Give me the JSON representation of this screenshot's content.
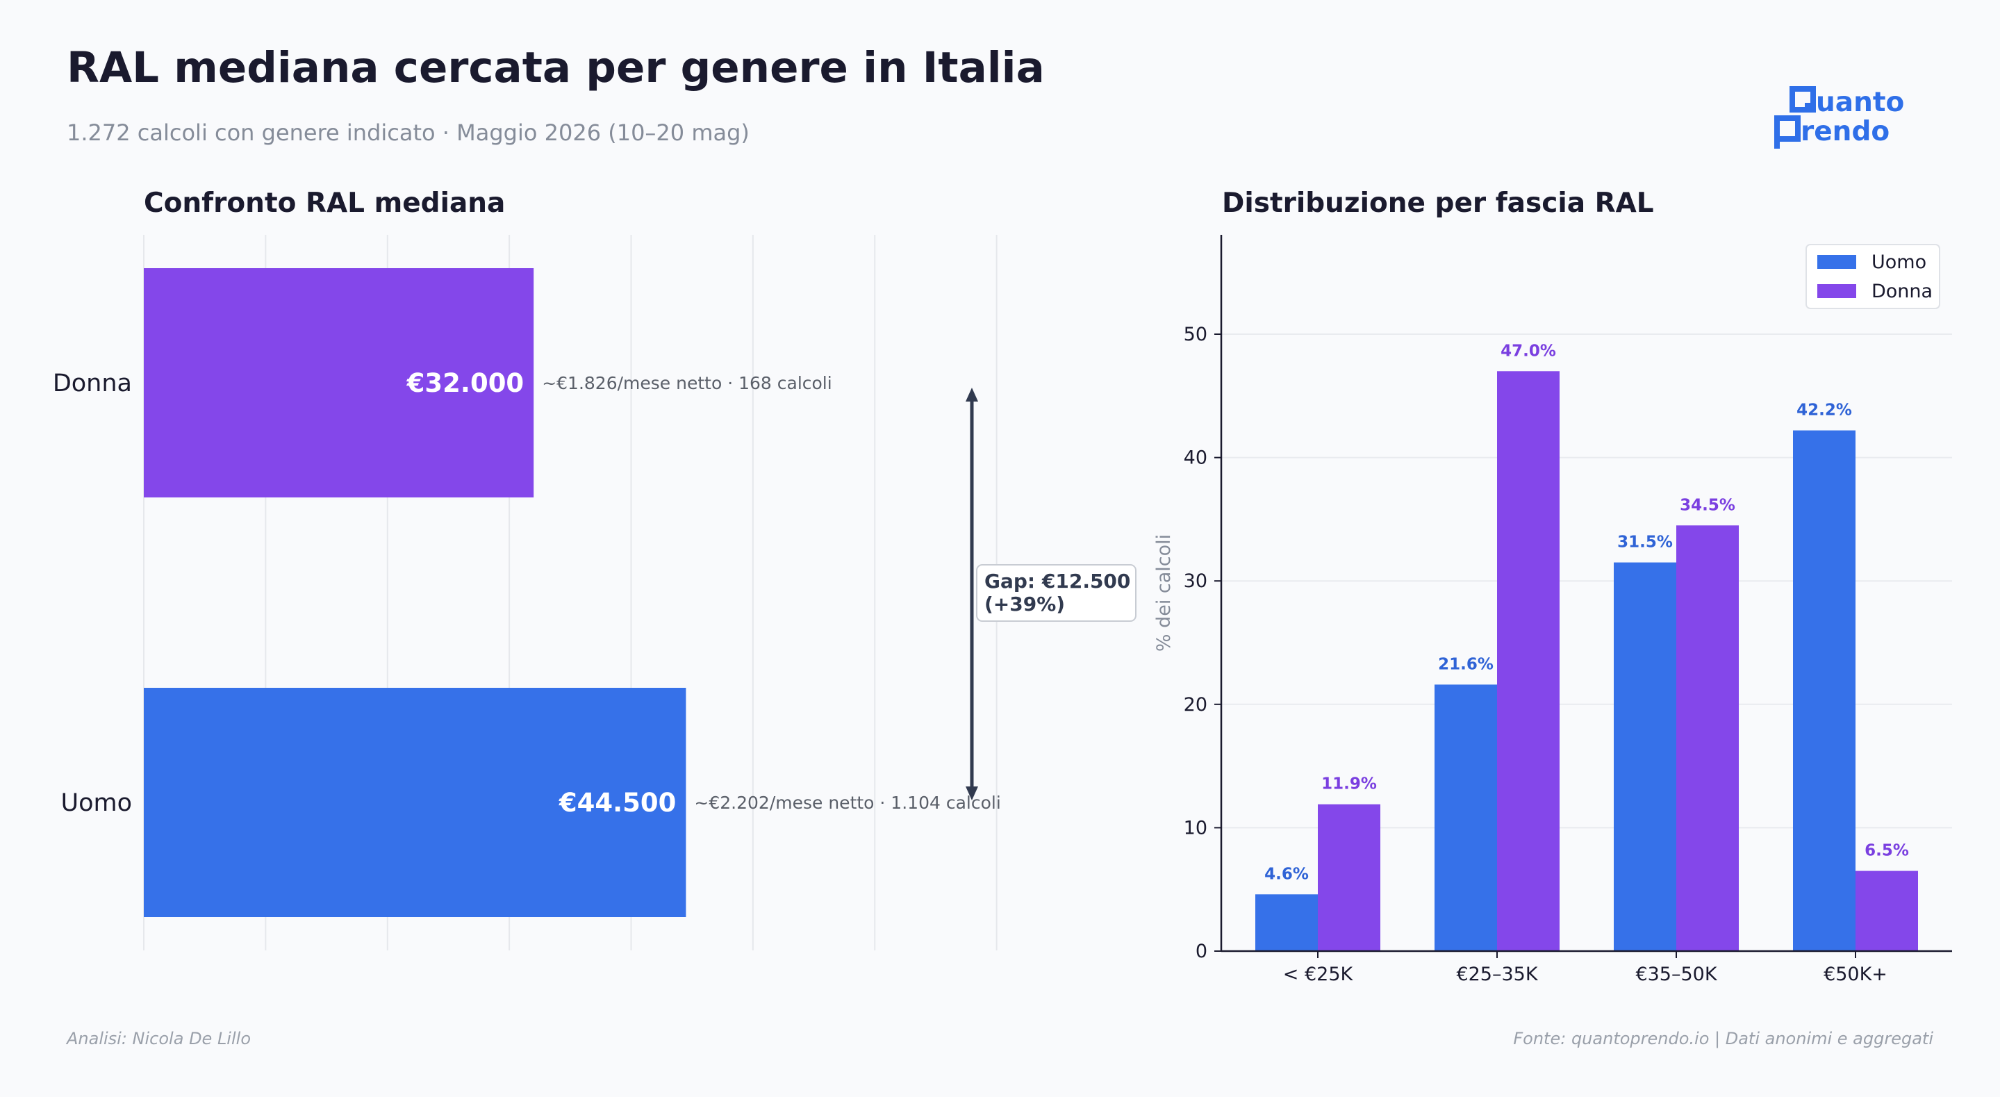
{
  "header": {
    "title": "RAL mediana cercata per genere in Italia",
    "subtitle": "1.272 calcoli con genere indicato  ·  Maggio 2026 (10–20 mag)"
  },
  "logo": {
    "line1": "uanto",
    "line2": "rendo"
  },
  "footer": {
    "left": "Analisi: Nicola De Lillo",
    "right": "Fonte: quantoprendo.io  |  Dati anonimi e aggregati"
  },
  "colors": {
    "uomo": "#3671e9",
    "donna": "#8447ea",
    "text": "#1a1a2e",
    "muted": "#858c99",
    "gap_arrow": "#313a4f"
  },
  "chart_data": [
    {
      "type": "bar",
      "orientation": "horizontal",
      "title": "Confronto RAL mediana",
      "categories": [
        "Donna",
        "Uomo"
      ],
      "values": [
        32000,
        44500
      ],
      "value_labels": [
        "€32.000",
        "€44.500"
      ],
      "annotations": [
        "~€1.826/mese netto  ·  168 calcoli",
        "~€2.202/mese netto  ·  1.104 calcoli"
      ],
      "gap_label": [
        "Gap: €12.500",
        "(+39%)"
      ],
      "xlim": [
        0,
        80000
      ],
      "grid": true
    },
    {
      "type": "bar",
      "title": "Distribuzione per fascia RAL",
      "categories": [
        "< €25K",
        "€25–35K",
        "€35–50K",
        "€50K+"
      ],
      "ylabel": "% dei calcoli",
      "ylim": [
        0,
        58
      ],
      "yticks": [
        0,
        10,
        20,
        30,
        40,
        50
      ],
      "legend": "top-right",
      "grid": true,
      "series": [
        {
          "name": "Uomo",
          "values": [
            4.6,
            21.6,
            31.5,
            42.2
          ],
          "labels": [
            "4.6%",
            "21.6%",
            "31.5%",
            "42.2%"
          ]
        },
        {
          "name": "Donna",
          "values": [
            11.9,
            47.0,
            34.5,
            6.5
          ],
          "labels": [
            "11.9%",
            "47.0%",
            "34.5%",
            "6.5%"
          ]
        }
      ]
    }
  ]
}
